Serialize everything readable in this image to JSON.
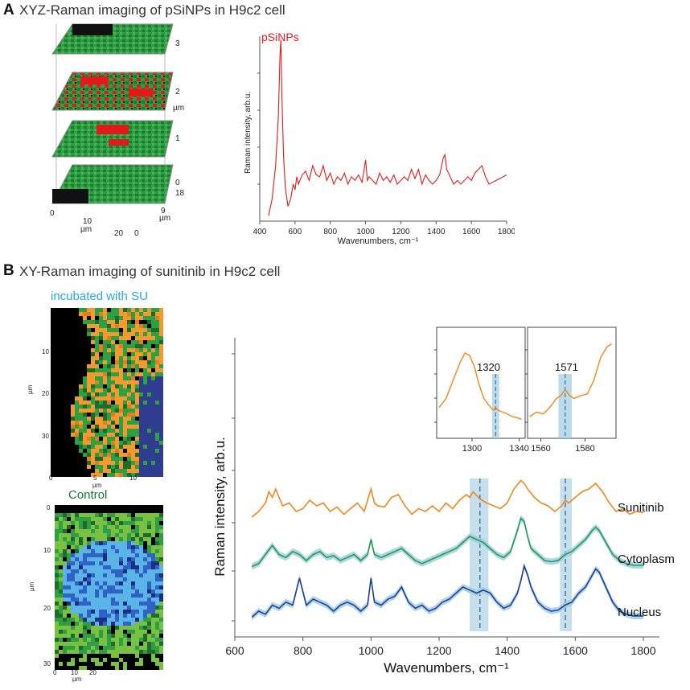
{
  "panel_a": {
    "letter": "A",
    "title": "XYZ-Raman imaging of pSiNPs in H9c2 cell",
    "stack": {
      "z_ticks": [
        "0",
        "1",
        "2",
        "3"
      ],
      "z_label": "µm",
      "x_ticks": [
        "0",
        "10",
        "20"
      ],
      "x_label": "µm",
      "y_ticks": [
        "0",
        "9",
        "18"
      ],
      "y_label": "µm"
    }
  },
  "panel_b": {
    "letter": "B",
    "title": "XY-Raman imaging of sunitinib in H9c2 cell",
    "map_su": {
      "title": "incubated with SU",
      "x_ticks": [
        "0",
        "5",
        "10"
      ],
      "x_label": "µm",
      "y_ticks": [
        "0",
        "10",
        "20",
        "30"
      ],
      "y_label": "µm"
    },
    "map_control": {
      "title": "Control",
      "x_ticks": [
        "0",
        "10",
        "20"
      ],
      "x_label": "µm",
      "y_ticks": [
        "0",
        "10",
        "20",
        "30"
      ],
      "y_label": "µm"
    }
  },
  "colors": {
    "psinp": "#e31a1c",
    "sunitinib": "#f5861f",
    "cytoplasm": "#1f9e4a",
    "nucleus": "#1f3f99",
    "band": "#9ecae1",
    "su_title": "#29a8e0",
    "control_title": "#1a7a2e"
  },
  "chart_data": [
    {
      "type": "line",
      "title": "",
      "xlabel": "Wavenumbers, cm⁻¹",
      "ylabel": "Raman intensity, arb.u.",
      "xlim": [
        400,
        1800
      ],
      "ylim": [
        0,
        1
      ],
      "x_ticks": [
        400,
        600,
        800,
        1000,
        1200,
        1400,
        1600,
        1800
      ],
      "series": [
        {
          "name": "pSiNPs",
          "x": [
            450,
            470,
            490,
            505,
            515,
            520,
            525,
            535,
            545,
            560,
            575,
            590,
            600,
            610,
            620,
            640,
            660,
            680,
            700,
            720,
            740,
            760,
            780,
            800,
            820,
            840,
            860,
            880,
            900,
            920,
            940,
            960,
            980,
            1000,
            1010,
            1020,
            1040,
            1060,
            1080,
            1100,
            1120,
            1140,
            1160,
            1180,
            1200,
            1220,
            1240,
            1260,
            1280,
            1300,
            1320,
            1340,
            1360,
            1380,
            1400,
            1420,
            1440,
            1450,
            1460,
            1480,
            1500,
            1520,
            1540,
            1560,
            1580,
            1600,
            1620,
            1640,
            1660,
            1680,
            1700,
            1720,
            1740,
            1760,
            1780,
            1800
          ],
          "y": [
            0.03,
            0.12,
            0.3,
            0.55,
            0.9,
            0.98,
            0.7,
            0.35,
            0.18,
            0.08,
            0.12,
            0.2,
            0.17,
            0.24,
            0.2,
            0.25,
            0.27,
            0.22,
            0.3,
            0.25,
            0.24,
            0.3,
            0.22,
            0.26,
            0.2,
            0.24,
            0.22,
            0.26,
            0.2,
            0.24,
            0.22,
            0.25,
            0.21,
            0.33,
            0.22,
            0.24,
            0.22,
            0.2,
            0.26,
            0.22,
            0.24,
            0.21,
            0.25,
            0.2,
            0.22,
            0.24,
            0.22,
            0.28,
            0.23,
            0.28,
            0.2,
            0.25,
            0.22,
            0.2,
            0.22,
            0.25,
            0.34,
            0.36,
            0.28,
            0.24,
            0.2,
            0.22,
            0.2,
            0.22,
            0.24,
            0.22,
            0.26,
            0.28,
            0.3,
            0.24,
            0.2,
            0.21,
            0.22,
            0.23,
            0.24,
            0.25
          ]
        }
      ]
    },
    {
      "type": "line",
      "title": "",
      "xlabel": "Wavenumbers, cm⁻¹",
      "ylabel": "Raman intensity, arb.u.",
      "xlim": [
        600,
        1800
      ],
      "x_ticks": [
        600,
        800,
        1000,
        1200,
        1400,
        1600,
        1800
      ],
      "bands": [
        {
          "center": 1320,
          "from": 1290,
          "to": 1345
        },
        {
          "center": 1571,
          "from": 1555,
          "to": 1590
        }
      ],
      "series": [
        {
          "name": "Sunitinib",
          "x": [
            650,
            670,
            690,
            700,
            710,
            720,
            740,
            760,
            780,
            800,
            820,
            840,
            860,
            880,
            900,
            920,
            940,
            960,
            980,
            1000,
            1010,
            1020,
            1040,
            1060,
            1080,
            1090,
            1100,
            1120,
            1140,
            1160,
            1180,
            1200,
            1220,
            1240,
            1260,
            1280,
            1290,
            1300,
            1320,
            1340,
            1360,
            1380,
            1400,
            1420,
            1440,
            1450,
            1460,
            1480,
            1500,
            1520,
            1540,
            1560,
            1571,
            1580,
            1600,
            1620,
            1640,
            1660,
            1680,
            1700,
            1720,
            1740,
            1760,
            1780,
            1800
          ],
          "y": [
            0.1,
            0.2,
            0.35,
            0.55,
            0.45,
            0.6,
            0.3,
            0.35,
            0.2,
            0.25,
            0.4,
            0.3,
            0.35,
            0.2,
            0.28,
            0.15,
            0.25,
            0.35,
            0.2,
            0.6,
            0.35,
            0.3,
            0.28,
            0.45,
            0.5,
            0.4,
            0.3,
            0.15,
            0.25,
            0.2,
            0.3,
            0.2,
            0.35,
            0.25,
            0.4,
            0.5,
            0.45,
            0.55,
            0.42,
            0.35,
            0.3,
            0.25,
            0.35,
            0.6,
            0.75,
            0.7,
            0.6,
            0.45,
            0.35,
            0.3,
            0.2,
            0.3,
            0.4,
            0.35,
            0.45,
            0.55,
            0.6,
            0.7,
            0.55,
            0.35,
            0.2,
            0.25,
            0.15,
            0.2,
            0.18
          ]
        },
        {
          "name": "Cytoplasm",
          "x": [
            650,
            670,
            690,
            710,
            730,
            750,
            770,
            790,
            810,
            830,
            850,
            870,
            890,
            910,
            930,
            950,
            970,
            990,
            1000,
            1010,
            1030,
            1050,
            1070,
            1090,
            1110,
            1130,
            1150,
            1170,
            1190,
            1210,
            1230,
            1250,
            1270,
            1290,
            1310,
            1330,
            1350,
            1370,
            1390,
            1410,
            1430,
            1440,
            1450,
            1460,
            1470,
            1490,
            1510,
            1530,
            1550,
            1570,
            1590,
            1610,
            1630,
            1650,
            1660,
            1670,
            1690,
            1710,
            1730,
            1750,
            1770,
            1800
          ],
          "y": [
            0.1,
            0.15,
            0.3,
            0.45,
            0.3,
            0.25,
            0.35,
            0.3,
            0.2,
            0.3,
            0.35,
            0.25,
            0.28,
            0.2,
            0.25,
            0.3,
            0.2,
            0.3,
            0.55,
            0.3,
            0.25,
            0.3,
            0.35,
            0.4,
            0.3,
            0.2,
            0.15,
            0.2,
            0.25,
            0.3,
            0.35,
            0.4,
            0.5,
            0.6,
            0.55,
            0.5,
            0.4,
            0.3,
            0.25,
            0.35,
            0.7,
            0.9,
            0.85,
            0.6,
            0.4,
            0.3,
            0.2,
            0.18,
            0.2,
            0.3,
            0.35,
            0.45,
            0.55,
            0.7,
            0.75,
            0.7,
            0.5,
            0.3,
            0.2,
            0.15,
            0.12,
            0.12
          ]
        },
        {
          "name": "Nucleus",
          "x": [
            650,
            670,
            690,
            710,
            730,
            750,
            770,
            790,
            810,
            830,
            850,
            870,
            890,
            910,
            930,
            950,
            970,
            990,
            1000,
            1010,
            1030,
            1050,
            1070,
            1090,
            1110,
            1130,
            1150,
            1170,
            1190,
            1210,
            1230,
            1250,
            1270,
            1290,
            1310,
            1330,
            1350,
            1370,
            1390,
            1410,
            1430,
            1440,
            1450,
            1460,
            1470,
            1490,
            1510,
            1530,
            1550,
            1570,
            1590,
            1610,
            1630,
            1650,
            1660,
            1670,
            1690,
            1710,
            1730,
            1750,
            1770,
            1800
          ],
          "y": [
            0.1,
            0.2,
            0.15,
            0.3,
            0.25,
            0.35,
            0.3,
            0.75,
            0.3,
            0.4,
            0.35,
            0.3,
            0.2,
            0.3,
            0.35,
            0.3,
            0.2,
            0.3,
            0.75,
            0.35,
            0.3,
            0.4,
            0.45,
            0.6,
            0.35,
            0.25,
            0.3,
            0.2,
            0.25,
            0.35,
            0.4,
            0.5,
            0.6,
            0.55,
            0.5,
            0.55,
            0.5,
            0.35,
            0.25,
            0.3,
            0.5,
            0.7,
            0.95,
            0.8,
            0.6,
            0.35,
            0.25,
            0.2,
            0.22,
            0.3,
            0.35,
            0.5,
            0.6,
            0.8,
            0.9,
            0.85,
            0.6,
            0.35,
            0.2,
            0.15,
            0.12,
            0.12
          ]
        }
      ]
    },
    {
      "type": "line",
      "title": "",
      "xlim": [
        1270,
        1345
      ],
      "x_ticks": [
        1300,
        1340
      ],
      "band_label": "1320",
      "band": {
        "center": 1320,
        "from": 1317,
        "to": 1323
      },
      "series": [
        {
          "name": "Sunitinib",
          "x": [
            1272,
            1278,
            1284,
            1290,
            1294,
            1298,
            1302,
            1306,
            1310,
            1314,
            1318,
            1320,
            1322,
            1326,
            1330,
            1334,
            1338,
            1342
          ],
          "y": [
            0.25,
            0.35,
            0.55,
            0.75,
            0.85,
            0.82,
            0.7,
            0.5,
            0.35,
            0.28,
            0.22,
            0.25,
            0.22,
            0.2,
            0.18,
            0.15,
            0.14,
            0.12
          ]
        }
      ]
    },
    {
      "type": "line",
      "title": "",
      "xlim": [
        1554,
        1594
      ],
      "x_ticks": [
        1560,
        1580
      ],
      "band_label": "1571",
      "band": {
        "center": 1571,
        "from": 1568,
        "to": 1574
      },
      "series": [
        {
          "name": "Sunitinib",
          "x": [
            1555,
            1558,
            1561,
            1564,
            1567,
            1569,
            1571,
            1573,
            1575,
            1578,
            1581,
            1584,
            1587,
            1590,
            1592
          ],
          "y": [
            0.15,
            0.2,
            0.18,
            0.25,
            0.35,
            0.38,
            0.45,
            0.38,
            0.35,
            0.38,
            0.4,
            0.55,
            0.8,
            0.92,
            0.95
          ]
        }
      ]
    }
  ]
}
